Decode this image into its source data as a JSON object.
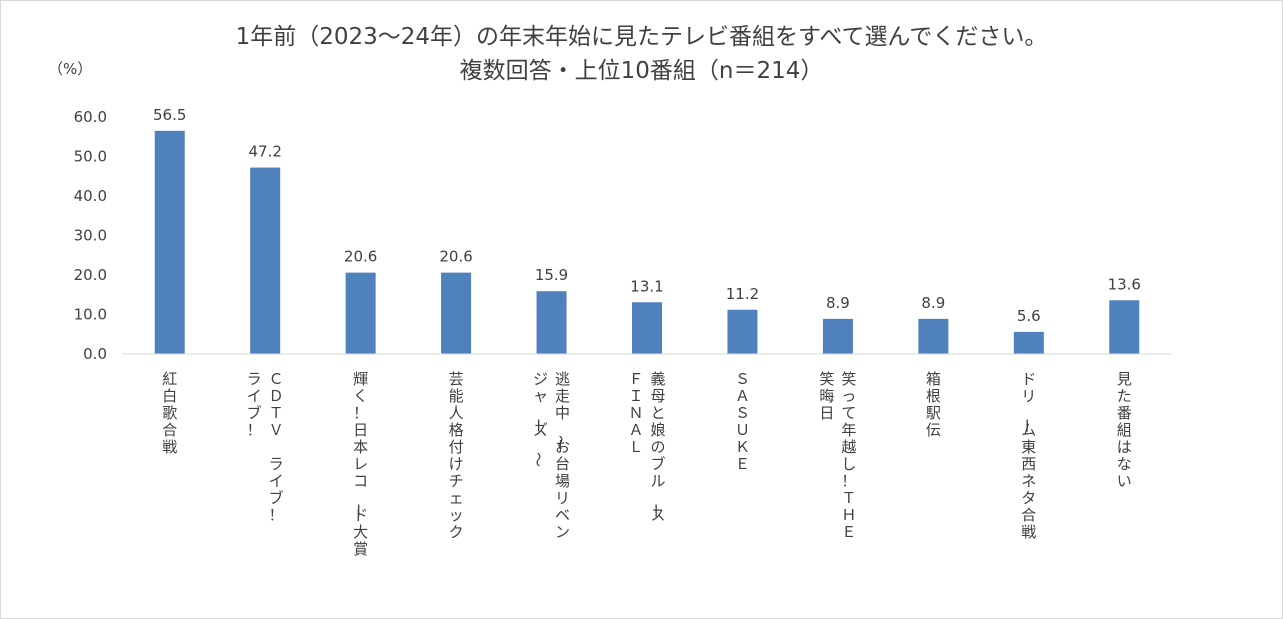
{
  "chart_data": {
    "type": "bar",
    "title": [
      "1年前（2023～24年）の年末年始に見たテレビ番組をすべて選んでください。",
      "複数回答・上位10番組（n＝214）"
    ],
    "ylabel": "（%）",
    "ylim": [
      0,
      60
    ],
    "yticks": [
      "0.0",
      "10.0",
      "20.0",
      "30.0",
      "40.0",
      "50.0",
      "60.0"
    ],
    "grid": false,
    "legend": "none",
    "bar_color": "#4f81bd",
    "categories": [
      [
        "紅白歌合戦"
      ],
      [
        "ＣＤＴＶ　ライブ！",
        "ライブ！"
      ],
      [
        "輝く！日本レコード大賞"
      ],
      [
        "芸能人格付けチェック"
      ],
      [
        "逃走中～お台場リベン",
        "ジャーズ～"
      ],
      [
        "義母と娘のブルース",
        "ＦＩＮＡＬ"
      ],
      [
        "ＳＡＳＵＫＥ"
      ],
      [
        "笑って年越し！ＴＨＥ",
        "笑晦日"
      ],
      [
        "箱根駅伝"
      ],
      [
        "ドリーム東西ネタ合戦"
      ],
      [
        "見た番組はない"
      ]
    ],
    "values": [
      56.5,
      47.2,
      20.6,
      20.6,
      15.9,
      13.1,
      11.2,
      8.9,
      8.9,
      5.6,
      13.6
    ],
    "data_labels": [
      "56.5",
      "47.2",
      "20.6",
      "20.6",
      "15.9",
      "13.1",
      "11.2",
      "8.9",
      "8.9",
      "5.6",
      "13.6"
    ]
  }
}
